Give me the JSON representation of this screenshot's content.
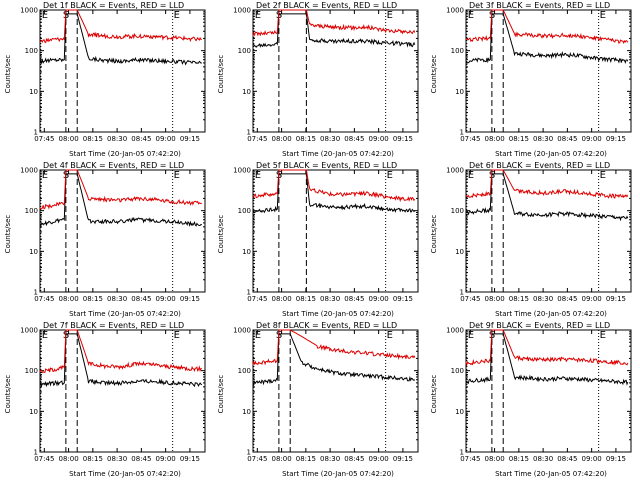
{
  "colors": {
    "events": "#000000",
    "lld": "#dd0000",
    "axes": "#000000"
  },
  "common": {
    "ylabel": "Counts/sec",
    "xlabel": "Start Time (20-Jan-05 07:42:20)",
    "x_ticks": [
      "07:45",
      "08:00",
      "08:15",
      "08:30",
      "08:45",
      "09:00",
      "09:15"
    ],
    "y_ticks": [
      "1",
      "10",
      "100",
      "1000"
    ],
    "markers": {
      "eclipse": "E",
      "saa": "S"
    }
  },
  "chart_data": [
    {
      "type": "line",
      "title": "Det 1f BLACK = Events, RED = LLD",
      "yscale": "log",
      "ylim": [
        1,
        1000
      ],
      "x_units": "minutes after 07:42:20",
      "series": [
        {
          "name": "Events",
          "values": [
            [
              0,
              55
            ],
            [
              10,
              60
            ],
            [
              15,
              60
            ],
            [
              16,
              800
            ],
            [
              23,
              800
            ],
            [
              30,
              65
            ],
            [
              40,
              58
            ],
            [
              50,
              55
            ],
            [
              60,
              60
            ],
            [
              70,
              58
            ],
            [
              80,
              55
            ],
            [
              90,
              52
            ],
            [
              100,
              50
            ]
          ]
        },
        {
          "name": "LLD",
          "values": [
            [
              0,
              170
            ],
            [
              10,
              190
            ],
            [
              15,
              190
            ],
            [
              16,
              1000
            ],
            [
              23,
              1000
            ],
            [
              30,
              250
            ],
            [
              40,
              230
            ],
            [
              50,
              220
            ],
            [
              60,
              230
            ],
            [
              70,
              225
            ],
            [
              80,
              210
            ],
            [
              90,
              200
            ],
            [
              100,
              190
            ]
          ]
        }
      ]
    },
    {
      "type": "line",
      "title": "Det 2f BLACK = Events, RED = LLD",
      "yscale": "log",
      "ylim": [
        1,
        1000
      ],
      "x_units": "minutes after 07:42:20",
      "series": [
        {
          "name": "Events",
          "values": [
            [
              0,
              130
            ],
            [
              10,
              140
            ],
            [
              15,
              145
            ],
            [
              16,
              800
            ],
            [
              33,
              800
            ],
            [
              35,
              190
            ],
            [
              50,
              170
            ],
            [
              60,
              175
            ],
            [
              70,
              170
            ],
            [
              80,
              160
            ],
            [
              90,
              150
            ],
            [
              100,
              140
            ]
          ]
        },
        {
          "name": "LLD",
          "values": [
            [
              0,
              260
            ],
            [
              10,
              270
            ],
            [
              15,
              280
            ],
            [
              16,
              1000
            ],
            [
              33,
              1000
            ],
            [
              35,
              430
            ],
            [
              50,
              380
            ],
            [
              60,
              370
            ],
            [
              70,
              380
            ],
            [
              80,
              330
            ],
            [
              90,
              300
            ],
            [
              100,
              280
            ]
          ]
        }
      ]
    },
    {
      "type": "line",
      "title": "Det 3f BLACK = Events, RED = LLD",
      "yscale": "log",
      "ylim": [
        1,
        1000
      ],
      "x_units": "minutes after 07:42:20",
      "series": [
        {
          "name": "Events",
          "values": [
            [
              0,
              55
            ],
            [
              10,
              60
            ],
            [
              15,
              60
            ],
            [
              16,
              800
            ],
            [
              23,
              800
            ],
            [
              30,
              85
            ],
            [
              40,
              80
            ],
            [
              50,
              75
            ],
            [
              60,
              80
            ],
            [
              70,
              75
            ],
            [
              80,
              65
            ],
            [
              90,
              60
            ],
            [
              100,
              55
            ]
          ]
        },
        {
          "name": "LLD",
          "values": [
            [
              0,
              180
            ],
            [
              10,
              200
            ],
            [
              15,
              200
            ],
            [
              16,
              1000
            ],
            [
              23,
              1000
            ],
            [
              30,
              260
            ],
            [
              40,
              240
            ],
            [
              50,
              230
            ],
            [
              60,
              240
            ],
            [
              70,
              230
            ],
            [
              80,
              200
            ],
            [
              90,
              180
            ],
            [
              100,
              160
            ]
          ]
        }
      ]
    },
    {
      "type": "line",
      "title": "Det 4f BLACK = Events, RED = LLD",
      "yscale": "log",
      "ylim": [
        1,
        1000
      ],
      "x_units": "minutes after 07:42:20",
      "series": [
        {
          "name": "Events",
          "values": [
            [
              0,
              45
            ],
            [
              10,
              55
            ],
            [
              15,
              60
            ],
            [
              16,
              800
            ],
            [
              23,
              800
            ],
            [
              30,
              55
            ],
            [
              40,
              55
            ],
            [
              50,
              55
            ],
            [
              60,
              60
            ],
            [
              70,
              58
            ],
            [
              80,
              55
            ],
            [
              90,
              50
            ],
            [
              100,
              45
            ]
          ]
        },
        {
          "name": "LLD",
          "values": [
            [
              0,
              120
            ],
            [
              10,
              140
            ],
            [
              15,
              150
            ],
            [
              16,
              1000
            ],
            [
              23,
              1000
            ],
            [
              30,
              200
            ],
            [
              40,
              190
            ],
            [
              50,
              180
            ],
            [
              60,
              200
            ],
            [
              70,
              190
            ],
            [
              80,
              170
            ],
            [
              90,
              160
            ],
            [
              100,
              150
            ]
          ]
        }
      ]
    },
    {
      "type": "line",
      "title": "Det 5f BLACK = Events, RED = LLD",
      "yscale": "log",
      "ylim": [
        1,
        1000
      ],
      "x_units": "minutes after 07:42:20",
      "series": [
        {
          "name": "Events",
          "values": [
            [
              0,
              95
            ],
            [
              10,
              105
            ],
            [
              15,
              110
            ],
            [
              16,
              800
            ],
            [
              33,
              800
            ],
            [
              35,
              140
            ],
            [
              50,
              120
            ],
            [
              60,
              125
            ],
            [
              70,
              130
            ],
            [
              80,
              115
            ],
            [
              90,
              105
            ],
            [
              100,
              100
            ]
          ]
        },
        {
          "name": "LLD",
          "values": [
            [
              0,
              230
            ],
            [
              10,
              250
            ],
            [
              15,
              260
            ],
            [
              16,
              1000
            ],
            [
              33,
              1000
            ],
            [
              35,
              330
            ],
            [
              50,
              250
            ],
            [
              60,
              260
            ],
            [
              70,
              270
            ],
            [
              80,
              230
            ],
            [
              90,
              200
            ],
            [
              100,
              190
            ]
          ]
        }
      ]
    },
    {
      "type": "line",
      "title": "Det 6f BLACK = Events, RED = LLD",
      "yscale": "log",
      "ylim": [
        1,
        1000
      ],
      "x_units": "minutes after 07:42:20",
      "series": [
        {
          "name": "Events",
          "values": [
            [
              0,
              90
            ],
            [
              10,
              100
            ],
            [
              15,
              105
            ],
            [
              16,
              800
            ],
            [
              23,
              800
            ],
            [
              30,
              85
            ],
            [
              40,
              80
            ],
            [
              50,
              80
            ],
            [
              60,
              85
            ],
            [
              70,
              80
            ],
            [
              80,
              75
            ],
            [
              90,
              70
            ],
            [
              100,
              65
            ]
          ]
        },
        {
          "name": "LLD",
          "values": [
            [
              0,
              230
            ],
            [
              10,
              250
            ],
            [
              15,
              260
            ],
            [
              16,
              1000
            ],
            [
              23,
              1000
            ],
            [
              30,
              310
            ],
            [
              40,
              290
            ],
            [
              50,
              270
            ],
            [
              60,
              300
            ],
            [
              70,
              280
            ],
            [
              80,
              250
            ],
            [
              90,
              230
            ],
            [
              100,
              220
            ]
          ]
        }
      ]
    },
    {
      "type": "line",
      "title": "Det 7f BLACK = Events, RED = LLD",
      "yscale": "log",
      "ylim": [
        1,
        1000
      ],
      "x_units": "minutes after 07:42:20",
      "series": [
        {
          "name": "Events",
          "values": [
            [
              0,
              45
            ],
            [
              10,
              50
            ],
            [
              15,
              50
            ],
            [
              16,
              800
            ],
            [
              23,
              800
            ],
            [
              30,
              55
            ],
            [
              40,
              50
            ],
            [
              50,
              50
            ],
            [
              60,
              55
            ],
            [
              70,
              55
            ],
            [
              80,
              50
            ],
            [
              90,
              48
            ],
            [
              100,
              45
            ]
          ]
        },
        {
          "name": "LLD",
          "values": [
            [
              0,
              95
            ],
            [
              10,
              110
            ],
            [
              15,
              120
            ],
            [
              16,
              1000
            ],
            [
              23,
              1000
            ],
            [
              30,
              150
            ],
            [
              40,
              130
            ],
            [
              50,
              125
            ],
            [
              60,
              150
            ],
            [
              70,
              140
            ],
            [
              80,
              125
            ],
            [
              90,
              115
            ],
            [
              100,
              110
            ]
          ]
        }
      ]
    },
    {
      "type": "line",
      "title": "Det 8f BLACK = Events, RED = LLD",
      "yscale": "log",
      "ylim": [
        1,
        1000
      ],
      "x_units": "minutes after 07:42:20",
      "series": [
        {
          "name": "Events",
          "values": [
            [
              0,
              50
            ],
            [
              10,
              55
            ],
            [
              15,
              60
            ],
            [
              16,
              800
            ],
            [
              23,
              800
            ],
            [
              30,
              160
            ],
            [
              40,
              110
            ],
            [
              50,
              90
            ],
            [
              60,
              80
            ],
            [
              70,
              75
            ],
            [
              80,
              70
            ],
            [
              90,
              65
            ],
            [
              100,
              60
            ]
          ]
        },
        {
          "name": "LLD",
          "values": [
            [
              0,
              150
            ],
            [
              10,
              170
            ],
            [
              15,
              180
            ],
            [
              16,
              1000
            ],
            [
              23,
              1000
            ],
            [
              30,
              700
            ],
            [
              40,
              400
            ],
            [
              50,
              320
            ],
            [
              60,
              290
            ],
            [
              70,
              270
            ],
            [
              80,
              250
            ],
            [
              90,
              230
            ],
            [
              100,
              210
            ]
          ]
        }
      ]
    },
    {
      "type": "line",
      "title": "Det 9f BLACK = Events, RED = LLD",
      "yscale": "log",
      "ylim": [
        1,
        1000
      ],
      "x_units": "minutes after 07:42:20",
      "series": [
        {
          "name": "Events",
          "values": [
            [
              0,
              55
            ],
            [
              10,
              60
            ],
            [
              15,
              60
            ],
            [
              16,
              800
            ],
            [
              23,
              800
            ],
            [
              30,
              70
            ],
            [
              40,
              65
            ],
            [
              50,
              62
            ],
            [
              60,
              65
            ],
            [
              70,
              62
            ],
            [
              80,
              58
            ],
            [
              90,
              55
            ],
            [
              100,
              52
            ]
          ]
        },
        {
          "name": "LLD",
          "values": [
            [
              0,
              150
            ],
            [
              10,
              170
            ],
            [
              15,
              175
            ],
            [
              16,
              1000
            ],
            [
              23,
              1000
            ],
            [
              30,
              210
            ],
            [
              40,
              190
            ],
            [
              50,
              185
            ],
            [
              60,
              190
            ],
            [
              70,
              185
            ],
            [
              80,
              175
            ],
            [
              90,
              165
            ],
            [
              100,
              155
            ]
          ]
        }
      ]
    }
  ]
}
